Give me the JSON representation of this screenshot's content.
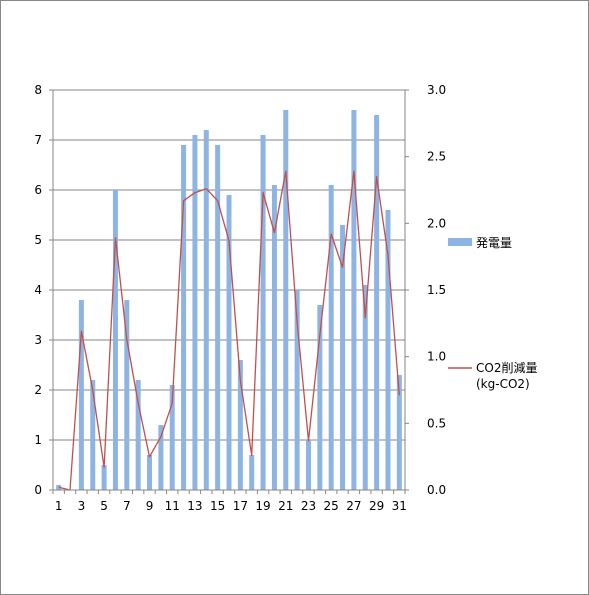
{
  "chart_data": {
    "type": "bar",
    "categories": [
      "1",
      "2",
      "3",
      "4",
      "5",
      "6",
      "7",
      "8",
      "9",
      "10",
      "11",
      "12",
      "13",
      "14",
      "15",
      "16",
      "17",
      "18",
      "19",
      "20",
      "21",
      "22",
      "23",
      "24",
      "25",
      "26",
      "27",
      "28",
      "29",
      "30",
      "31"
    ],
    "x_tick_labels": [
      "1",
      "3",
      "5",
      "7",
      "9",
      "11",
      "13",
      "15",
      "17",
      "19",
      "21",
      "23",
      "25",
      "27",
      "29",
      "31"
    ],
    "series": [
      {
        "name": "発電量",
        "type": "bar",
        "axis": "left",
        "color": "#8DB4E2",
        "values": [
          0.1,
          0.0,
          3.8,
          2.2,
          0.5,
          6.0,
          3.8,
          2.2,
          0.7,
          1.3,
          2.1,
          6.9,
          7.1,
          7.2,
          6.9,
          5.9,
          2.6,
          0.7,
          7.1,
          6.1,
          7.6,
          4.0,
          1.0,
          3.7,
          6.1,
          5.3,
          7.6,
          4.1,
          7.5,
          5.6,
          2.3
        ]
      },
      {
        "name": "CO2削減量",
        "name_line2": "(kg-CO2)",
        "type": "line",
        "axis": "right",
        "color": "#C0504D",
        "values": [
          0.02,
          0.0,
          1.19,
          0.75,
          0.17,
          1.89,
          1.13,
          0.65,
          0.25,
          0.4,
          0.65,
          2.17,
          2.23,
          2.26,
          2.17,
          1.87,
          0.82,
          0.26,
          2.23,
          1.93,
          2.39,
          1.26,
          0.37,
          1.16,
          1.92,
          1.67,
          2.39,
          1.29,
          2.35,
          1.76,
          0.71
        ]
      }
    ],
    "y_left": {
      "min": 0,
      "max": 8,
      "ticks": [
        "0",
        "1",
        "2",
        "3",
        "4",
        "5",
        "6",
        "7",
        "8"
      ]
    },
    "y_right": {
      "min": 0,
      "max": 3,
      "ticks": [
        "0.0",
        "0.5",
        "1.0",
        "1.5",
        "2.0",
        "2.5",
        "3.0"
      ]
    },
    "grid": true,
    "legend_position": "right",
    "axis_color": "#868686",
    "grid_color": "#868686"
  }
}
